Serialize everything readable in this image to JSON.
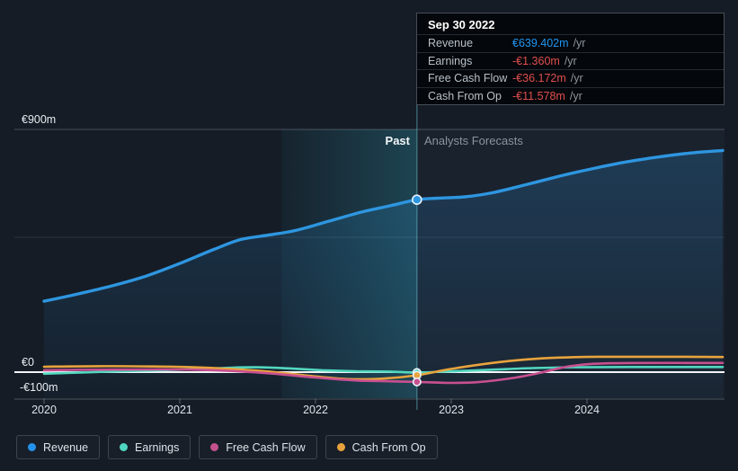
{
  "tooltip": {
    "date": "Sep 30 2022",
    "rows": [
      {
        "label": "Revenue",
        "value": "€639.402m",
        "unit": "/yr",
        "color": "#2196f3"
      },
      {
        "label": "Earnings",
        "value": "-€1.360m",
        "unit": "/yr",
        "color": "#e04f4f"
      },
      {
        "label": "Free Cash Flow",
        "value": "-€36.172m",
        "unit": "/yr",
        "color": "#e04f4f"
      },
      {
        "label": "Cash From Op",
        "value": "-€11.578m",
        "unit": "/yr",
        "color": "#e04f4f"
      }
    ]
  },
  "chart_labels": {
    "past": "Past",
    "forecast": "Analysts Forecasts",
    "y_top": "€900m",
    "y_zero": "€0",
    "y_bottom": "-€100m"
  },
  "x_axis": {
    "ticks": [
      "2020",
      "2021",
      "2022",
      "2023",
      "2024"
    ]
  },
  "legend": [
    {
      "label": "Revenue",
      "color": "#2493ee"
    },
    {
      "label": "Earnings",
      "color": "#4fd6c0"
    },
    {
      "label": "Free Cash Flow",
      "color": "#c4528e"
    },
    {
      "label": "Cash From Op",
      "color": "#e8a23c"
    }
  ],
  "chart_data": {
    "type": "line",
    "title": "Earnings and Revenue Growth",
    "x_unit": "decimal_year",
    "xlim": [
      2020,
      2025
    ],
    "ylim": [
      -100,
      900
    ],
    "y_gridline_values": [
      900,
      500,
      0,
      -100
    ],
    "y_axis_labels": [
      {
        "value": 900,
        "label": "€900m"
      },
      {
        "value": 0,
        "label": "€0"
      },
      {
        "value": -100,
        "label": "-€100m"
      }
    ],
    "past_boundary_x": 2022.747,
    "highlight_band_x": [
      2021.75,
      2022.747
    ],
    "marker_x": 2022.747,
    "legend_position": "bottom",
    "series": [
      {
        "name": "Revenue",
        "color": "#2e96e0",
        "width": 3.4,
        "area": true,
        "marker_r": 5,
        "points": [
          [
            2020.0,
            263
          ],
          [
            2020.25,
            290
          ],
          [
            2020.5,
            320
          ],
          [
            2020.75,
            356
          ],
          [
            2021.0,
            403
          ],
          [
            2021.25,
            455
          ],
          [
            2021.45,
            492
          ],
          [
            2021.65,
            508
          ],
          [
            2021.85,
            525
          ],
          [
            2022.1,
            560
          ],
          [
            2022.35,
            595
          ],
          [
            2022.55,
            617
          ],
          [
            2022.747,
            639.402
          ],
          [
            2022.9,
            645
          ],
          [
            2023.1,
            650
          ],
          [
            2023.3,
            665
          ],
          [
            2023.55,
            695
          ],
          [
            2023.8,
            727
          ],
          [
            2024.0,
            750
          ],
          [
            2024.25,
            776
          ],
          [
            2024.5,
            796
          ],
          [
            2024.75,
            812
          ],
          [
            2025.0,
            822
          ]
        ]
      },
      {
        "name": "Earnings",
        "color": "#52d7bf",
        "width": 2.6,
        "area": false,
        "marker_r": 4.2,
        "points": [
          [
            2020.0,
            -6
          ],
          [
            2020.3,
            -1
          ],
          [
            2020.6,
            4
          ],
          [
            2021.0,
            9
          ],
          [
            2021.3,
            15
          ],
          [
            2021.55,
            18
          ],
          [
            2021.8,
            14
          ],
          [
            2022.05,
            7
          ],
          [
            2022.3,
            3
          ],
          [
            2022.55,
            2
          ],
          [
            2022.747,
            -1.36
          ],
          [
            2023.0,
            3
          ],
          [
            2023.3,
            9
          ],
          [
            2023.6,
            15
          ],
          [
            2023.9,
            18
          ],
          [
            2024.3,
            19
          ],
          [
            2025.0,
            19
          ]
        ]
      },
      {
        "name": "Cash From Op",
        "color": "#e8a33d",
        "width": 2.6,
        "area": false,
        "marker_r": 4.2,
        "points": [
          [
            2020.0,
            20
          ],
          [
            2020.4,
            22
          ],
          [
            2020.8,
            21
          ],
          [
            2021.1,
            18
          ],
          [
            2021.4,
            11
          ],
          [
            2021.7,
            0
          ],
          [
            2022.0,
            -16
          ],
          [
            2022.25,
            -26
          ],
          [
            2022.5,
            -24
          ],
          [
            2022.747,
            -11.578
          ],
          [
            2023.0,
            12
          ],
          [
            2023.3,
            34
          ],
          [
            2023.55,
            47
          ],
          [
            2023.8,
            54
          ],
          [
            2024.1,
            57
          ],
          [
            2024.5,
            57
          ],
          [
            2025.0,
            56
          ]
        ]
      },
      {
        "name": "Free Cash Flow",
        "color": "#c85090",
        "width": 2.6,
        "area": false,
        "marker_r": 4.2,
        "points": [
          [
            2020.0,
            7
          ],
          [
            2020.4,
            9
          ],
          [
            2020.8,
            10
          ],
          [
            2021.1,
            9
          ],
          [
            2021.4,
            4
          ],
          [
            2021.7,
            -6
          ],
          [
            2022.0,
            -20
          ],
          [
            2022.3,
            -31
          ],
          [
            2022.55,
            -34
          ],
          [
            2022.747,
            -36.172
          ],
          [
            2023.0,
            -40
          ],
          [
            2023.2,
            -37
          ],
          [
            2023.45,
            -22
          ],
          [
            2023.65,
            -3
          ],
          [
            2023.85,
            20
          ],
          [
            2024.05,
            31
          ],
          [
            2024.4,
            34
          ],
          [
            2025.0,
            34
          ]
        ]
      }
    ]
  }
}
